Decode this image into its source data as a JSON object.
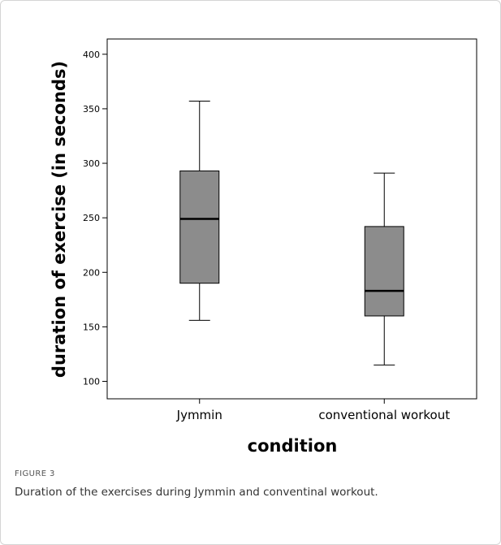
{
  "figure": {
    "label": "FIGURE 3",
    "caption": "Duration of the exercises during Jymmin and conventinal workout."
  },
  "chart_data": {
    "type": "box",
    "xlabel": "condition",
    "ylabel": "duration of exercise (in seconds)",
    "ylim": [
      84,
      414
    ],
    "yticks": [
      100,
      150,
      200,
      250,
      300,
      350,
      400
    ],
    "grid": false,
    "categories": [
      "Jymmin",
      "conventional workout"
    ],
    "boxes": [
      {
        "category": "Jymmin",
        "min": 156,
        "q1": 190,
        "median": 249,
        "q3": 293,
        "max": 357
      },
      {
        "category": "conventional workout",
        "min": 115,
        "q1": 160,
        "median": 183,
        "q3": 242,
        "max": 291
      }
    ],
    "colors": {
      "box_fill": "#8c8c8c",
      "stroke": "#000000"
    }
  }
}
